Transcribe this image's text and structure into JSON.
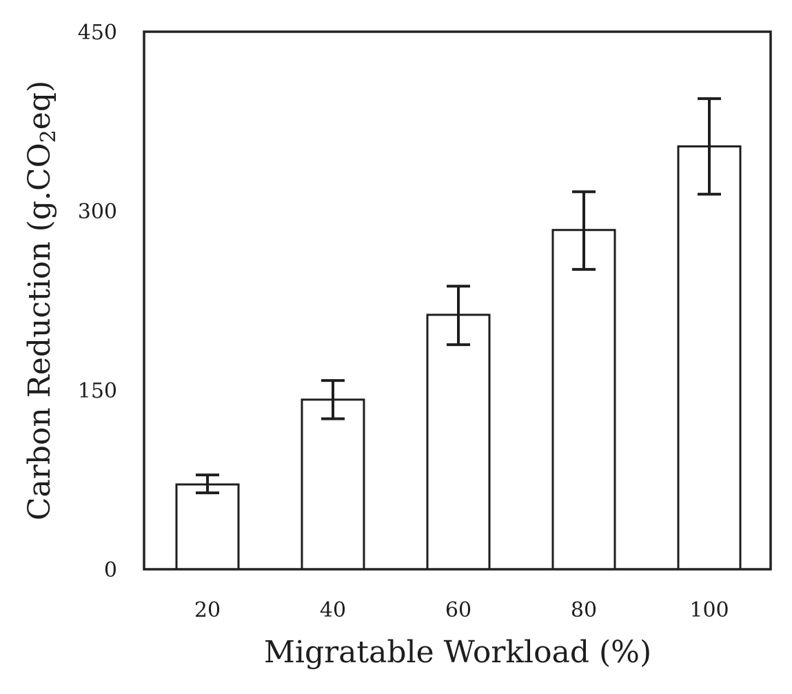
{
  "chart_data": {
    "type": "bar",
    "categories": [
      "20",
      "40",
      "60",
      "80",
      "100"
    ],
    "values": [
      71,
      142,
      213,
      284,
      354
    ],
    "error": [
      [
        64,
        79
      ],
      [
        126,
        158
      ],
      [
        188,
        237
      ],
      [
        251,
        316
      ],
      [
        314,
        394
      ]
    ],
    "xlabel": "Migratable Workload (%)",
    "ylabel_parts": [
      "Carbon Reduction (g.CO",
      "2",
      "eq)"
    ],
    "ylim": [
      0,
      450
    ],
    "yticks": [
      "0",
      "150",
      "300",
      "450"
    ],
    "ytick_values": [
      0,
      150,
      300,
      450
    ],
    "grid": false,
    "legend": "none",
    "colors": {
      "bar_fill": "#ffffff",
      "bar_stroke": "#1e1e1e",
      "axis": "#222222"
    }
  }
}
